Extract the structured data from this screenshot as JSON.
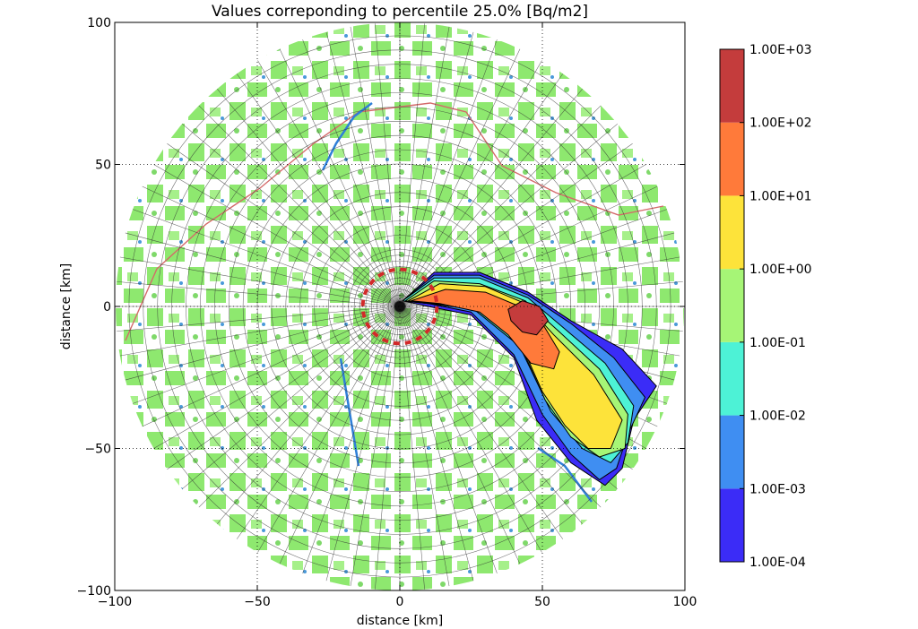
{
  "chart_data": {
    "type": "contour",
    "title": "Values correponding to percentile 25.0% [Bq/m2]",
    "xlabel": "distance [km]",
    "ylabel": "distance [km]",
    "xlim": [
      -100,
      100
    ],
    "ylim": [
      -100,
      100
    ],
    "xticks": [
      -100,
      -50,
      0,
      50,
      100
    ],
    "yticks": [
      -100,
      -50,
      0,
      50,
      100
    ],
    "xtick_labels": [
      "−100",
      "−50",
      "0",
      "50",
      "100"
    ],
    "ytick_labels": [
      "−100",
      "−50",
      "0",
      "50",
      "100"
    ],
    "grid": true,
    "map_radius_km": 100,
    "inner_zone_radius_km": 13,
    "colorbar": {
      "levels": [
        "1.00E-04",
        "1.00E-03",
        "1.00E-02",
        "1.00E-01",
        "1.00E+00",
        "1.00E+01",
        "1.00E+02",
        "1.00E+03"
      ],
      "colors": [
        "#3b2cf7",
        "#3f8ef2",
        "#4df2d6",
        "#a6f576",
        "#fde33a",
        "#ff7a3a",
        "#c43c3c"
      ]
    },
    "plume": {
      "direction": "east-southeast",
      "max_level": "1.00E+02",
      "bands": [
        {
          "level": "1.00E-04",
          "points": [
            [
              1,
              2
            ],
            [
              12,
              12
            ],
            [
              28,
              12
            ],
            [
              45,
              5
            ],
            [
              60,
              -5
            ],
            [
              78,
              -15
            ],
            [
              90,
              -28
            ],
            [
              82,
              -40
            ],
            [
              78,
              -57
            ],
            [
              72,
              -63
            ],
            [
              60,
              -55
            ],
            [
              48,
              -40
            ],
            [
              40,
              -18
            ],
            [
              25,
              -3
            ],
            [
              10,
              0
            ]
          ]
        },
        {
          "level": "1.00E-03",
          "points": [
            [
              1,
              2
            ],
            [
              12,
              11
            ],
            [
              28,
              11
            ],
            [
              45,
              4
            ],
            [
              60,
              -6
            ],
            [
              75,
              -18
            ],
            [
              86,
              -32
            ],
            [
              80,
              -45
            ],
            [
              76,
              -57
            ],
            [
              70,
              -61
            ],
            [
              60,
              -52
            ],
            [
              50,
              -38
            ],
            [
              40,
              -17
            ],
            [
              25,
              -2
            ],
            [
              10,
              1
            ]
          ]
        },
        {
          "level": "1.00E-02",
          "points": [
            [
              1,
              2
            ],
            [
              12,
              10
            ],
            [
              28,
              10
            ],
            [
              45,
              3
            ],
            [
              58,
              -8
            ],
            [
              72,
              -20
            ],
            [
              82,
              -35
            ],
            [
              80,
              -48
            ],
            [
              74,
              -55
            ],
            [
              64,
              -50
            ],
            [
              53,
              -37
            ],
            [
              42,
              -14
            ],
            [
              26,
              -1
            ],
            [
              10,
              1
            ]
          ]
        },
        {
          "level": "1.00E-01",
          "points": [
            [
              2,
              2
            ],
            [
              12,
              9
            ],
            [
              28,
              8
            ],
            [
              44,
              2
            ],
            [
              56,
              -9
            ],
            [
              70,
              -22
            ],
            [
              80,
              -38
            ],
            [
              79,
              -50
            ],
            [
              70,
              -53
            ],
            [
              60,
              -46
            ],
            [
              51,
              -33
            ],
            [
              42,
              -13
            ],
            [
              26,
              0
            ],
            [
              10,
              1
            ]
          ]
        },
        {
          "level": "1.00E+00",
          "points": [
            [
              3,
              2
            ],
            [
              14,
              8
            ],
            [
              30,
              7
            ],
            [
              44,
              1
            ],
            [
              54,
              -10
            ],
            [
              68,
              -24
            ],
            [
              78,
              -40
            ],
            [
              74,
              -50
            ],
            [
              66,
              -50
            ],
            [
              58,
              -42
            ],
            [
              50,
              -30
            ],
            [
              42,
              -12
            ],
            [
              28,
              0
            ],
            [
              12,
              1
            ]
          ]
        },
        {
          "level": "1.00E+01",
          "points": [
            [
              4,
              2
            ],
            [
              16,
              6
            ],
            [
              30,
              5
            ],
            [
              42,
              0
            ],
            [
              50,
              -6
            ],
            [
              56,
              -16
            ],
            [
              54,
              -22
            ],
            [
              46,
              -20
            ],
            [
              38,
              -10
            ],
            [
              28,
              -2
            ],
            [
              14,
              1
            ]
          ]
        },
        {
          "level": "1.00E+02",
          "points": [
            [
              38,
              -1
            ],
            [
              43,
              2
            ],
            [
              49,
              0
            ],
            [
              52,
              -5
            ],
            [
              48,
              -10
            ],
            [
              43,
              -9
            ],
            [
              39,
              -5
            ]
          ]
        }
      ]
    }
  }
}
